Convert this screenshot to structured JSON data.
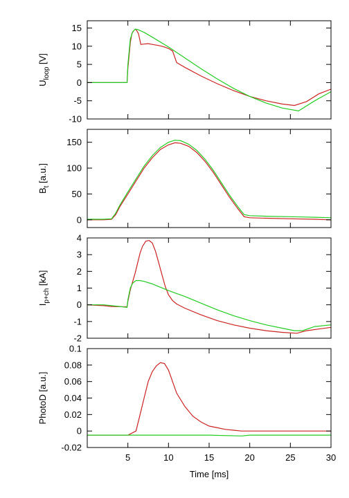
{
  "colors": {
    "red_series": "#cc2222",
    "green_series": "#22cc22"
  },
  "chart_data": [
    {
      "type": "line",
      "ylabel": {
        "main": "U",
        "sub": "loop",
        "unit": " [V]"
      },
      "ylim": [
        -10,
        17
      ],
      "yticks": [
        -10,
        -5,
        0,
        5,
        10,
        15
      ],
      "xlim": [
        0,
        30
      ],
      "grid": false,
      "series": [
        {
          "color": "#cc2222",
          "x": [
            0,
            4.9,
            5.0,
            5.3,
            5.5,
            5.8,
            6.0,
            6.3,
            6.6,
            7.0,
            7.5,
            8.0,
            8.5,
            9.0,
            9.5,
            10.0,
            10.5,
            11.0,
            12.0,
            14.0,
            16.0,
            18.0,
            20.0,
            22.0,
            24.0,
            25.5,
            27.0,
            28.5,
            30.0
          ],
          "y": [
            0,
            0,
            4,
            11,
            13.5,
            14.5,
            14.6,
            13.5,
            10.5,
            10.6,
            10.7,
            10.5,
            10.3,
            10.1,
            9.8,
            9.4,
            8.7,
            5.5,
            4.2,
            1.8,
            -0.3,
            -2.2,
            -3.8,
            -5.0,
            -5.9,
            -6.3,
            -5.2,
            -3.1,
            -1.8
          ]
        },
        {
          "color": "#22cc22",
          "x": [
            0,
            4.9,
            5.0,
            5.3,
            5.6,
            5.9,
            6.2,
            7.0,
            8.0,
            10.0,
            12.0,
            14.0,
            16.0,
            18.0,
            20.0,
            22.0,
            24.0,
            26.0,
            28.0,
            30.0
          ],
          "y": [
            0,
            0,
            5,
            12,
            14,
            14.7,
            14.6,
            13.8,
            12.5,
            9.8,
            6.8,
            3.8,
            1.0,
            -1.6,
            -3.8,
            -5.6,
            -7.0,
            -7.8,
            -5.0,
            -2.5
          ]
        }
      ]
    },
    {
      "type": "line",
      "ylabel": {
        "main": "B",
        "sub": "t",
        "unit": " [a.u.]"
      },
      "ylim": [
        -15,
        175
      ],
      "yticks": [
        0,
        50,
        100,
        150
      ],
      "xlim": [
        0,
        30
      ],
      "grid": false,
      "series": [
        {
          "color": "#cc2222",
          "x": [
            0,
            1.0,
            2.0,
            3.0,
            3.5,
            4.0,
            5.0,
            6.0,
            7.0,
            8.0,
            9.0,
            10.0,
            10.8,
            11.5,
            12.5,
            13.5,
            14.5,
            15.5,
            16.5,
            17.5,
            18.5,
            19.3,
            20.0,
            22.0,
            25.0,
            28.0,
            30.0
          ],
          "y": [
            0,
            0,
            0,
            1,
            10,
            25,
            50,
            75,
            100,
            120,
            136,
            145,
            149,
            148,
            142,
            130,
            113,
            92,
            68,
            44,
            22,
            6,
            4,
            3,
            2,
            1,
            0
          ]
        },
        {
          "color": "#22cc22",
          "x": [
            0,
            1.0,
            2.0,
            3.0,
            3.5,
            4.0,
            5.0,
            6.0,
            7.0,
            8.0,
            9.0,
            10.0,
            10.8,
            11.5,
            12.5,
            13.5,
            14.5,
            15.5,
            16.5,
            17.5,
            18.5,
            19.3,
            20.0,
            22.0,
            25.0,
            28.0,
            30.0
          ],
          "y": [
            1,
            1,
            1,
            2,
            13,
            28,
            54,
            79,
            104,
            124,
            140,
            150,
            154,
            153,
            146,
            134,
            117,
            96,
            72,
            48,
            26,
            10,
            8,
            7,
            6,
            5,
            4
          ]
        }
      ]
    },
    {
      "type": "line",
      "ylabel": {
        "main": "I",
        "sub": "p+ch",
        "unit": " [kA]"
      },
      "ylim": [
        -2,
        4
      ],
      "yticks": [
        -2,
        -1,
        0,
        1,
        2,
        3,
        4
      ],
      "xlim": [
        0,
        30
      ],
      "grid": false,
      "series": [
        {
          "color": "#cc2222",
          "x": [
            0,
            2.0,
            3.0,
            4.9,
            5.0,
            5.3,
            5.6,
            5.9,
            6.2,
            6.5,
            6.8,
            7.2,
            7.6,
            8.0,
            8.4,
            8.8,
            9.2,
            9.6,
            10.0,
            10.5,
            11.0,
            12.0,
            14.0,
            16.0,
            18.0,
            20.0,
            22.0,
            24.0,
            25.8,
            27.0,
            28.5,
            30.0
          ],
          "y": [
            0,
            -0.05,
            -0.1,
            -0.12,
            0.2,
            0.9,
            1.4,
            1.9,
            2.5,
            3.1,
            3.5,
            3.8,
            3.85,
            3.7,
            3.2,
            2.5,
            1.8,
            1.1,
            0.6,
            0.25,
            0.05,
            -0.2,
            -0.6,
            -0.95,
            -1.2,
            -1.4,
            -1.55,
            -1.65,
            -1.7,
            -1.55,
            -1.45,
            -1.35
          ]
        },
        {
          "color": "#22cc22",
          "x": [
            0,
            2.0,
            3.0,
            4.9,
            5.0,
            5.3,
            5.6,
            6.0,
            6.5,
            7.0,
            8.0,
            9.0,
            10.0,
            12.0,
            14.0,
            16.0,
            18.0,
            20.0,
            22.0,
            24.0,
            25.5,
            26.5,
            28.0,
            30.0
          ],
          "y": [
            0,
            0,
            -0.05,
            -0.15,
            0.3,
            1.0,
            1.3,
            1.45,
            1.45,
            1.4,
            1.25,
            1.05,
            0.85,
            0.5,
            0.1,
            -0.3,
            -0.65,
            -0.95,
            -1.2,
            -1.4,
            -1.55,
            -1.55,
            -1.3,
            -1.2
          ]
        }
      ]
    },
    {
      "type": "line",
      "ylabel": {
        "main": "PhotoD",
        "sub": "",
        "unit": " [a.u.]"
      },
      "ylim": [
        -0.02,
        0.1
      ],
      "yticks": [
        -0.02,
        0,
        0.02,
        0.04,
        0.06,
        0.08,
        0.1
      ],
      "xlim": [
        0,
        30
      ],
      "grid": false,
      "series": [
        {
          "color": "#cc2222",
          "x": [
            0,
            5.0,
            6.0,
            6.5,
            7.0,
            7.5,
            8.0,
            8.5,
            9.0,
            9.5,
            10.0,
            10.5,
            11.0,
            12.0,
            13.0,
            14.0,
            15.0,
            16.0,
            17.0,
            18.0,
            19.0,
            20.0,
            25.0,
            30.0
          ],
          "y": [
            -0.005,
            -0.005,
            0.0,
            0.02,
            0.04,
            0.06,
            0.072,
            0.079,
            0.083,
            0.082,
            0.074,
            0.06,
            0.046,
            0.03,
            0.018,
            0.011,
            0.006,
            0.004,
            0.002,
            0.001,
            0.0,
            0.0,
            0.0,
            0.0
          ]
        },
        {
          "color": "#22cc22",
          "x": [
            0,
            5.0,
            10.0,
            15.0,
            19.0,
            20.0,
            25.0,
            30.0
          ],
          "y": [
            -0.005,
            -0.005,
            -0.005,
            -0.005,
            -0.006,
            -0.005,
            -0.005,
            -0.005
          ]
        }
      ]
    }
  ],
  "xaxis": {
    "label": "Time [ms]",
    "xlim": [
      0,
      30
    ],
    "ticks": [
      5,
      10,
      15,
      20,
      25,
      30
    ]
  }
}
